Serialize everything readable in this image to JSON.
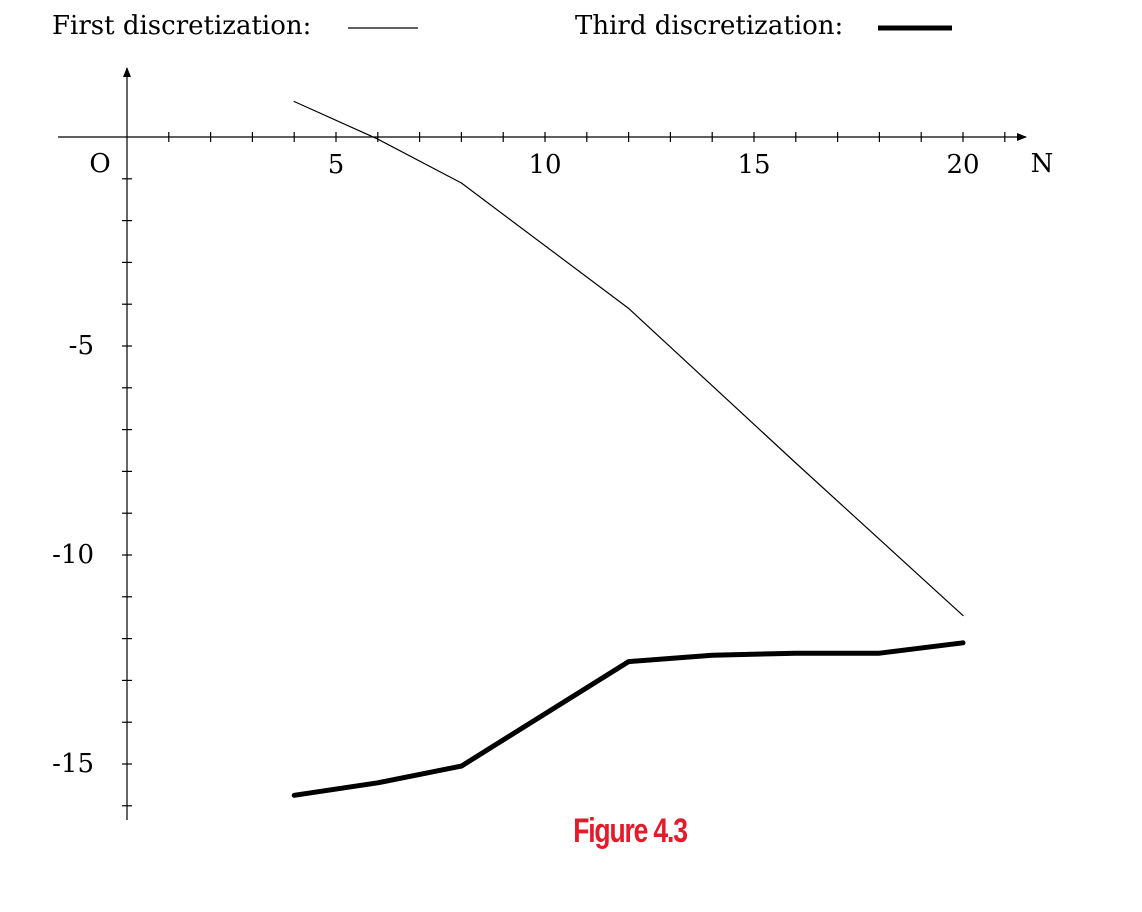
{
  "caption": "Figure 4.3",
  "colors": {
    "caption": "#e31b2b",
    "axes": "#000000",
    "background": "#ffffff"
  },
  "chart_data": {
    "type": "line",
    "title": "",
    "xlabel": "N",
    "ylabel": "",
    "origin_label": "O",
    "xlim": [
      0,
      21.5
    ],
    "ylim": [
      -16.3,
      1.5
    ],
    "x_minor_ticks": [
      1,
      2,
      3,
      4,
      5,
      6,
      7,
      8,
      9,
      10,
      11,
      12,
      13,
      14,
      15,
      16,
      17,
      18,
      19,
      20,
      21
    ],
    "x_tick_labels": [
      {
        "value": 5,
        "label": "5"
      },
      {
        "value": 10,
        "label": "10"
      },
      {
        "value": 15,
        "label": "15"
      },
      {
        "value": 20,
        "label": "20"
      }
    ],
    "y_minor_ticks": [
      -1,
      -2,
      -3,
      -4,
      -5,
      -6,
      -7,
      -8,
      -9,
      -10,
      -11,
      -12,
      -13,
      -14,
      -15,
      -16
    ],
    "y_tick_labels": [
      {
        "value": -5,
        "label": "-5"
      },
      {
        "value": -10,
        "label": "-10"
      },
      {
        "value": -15,
        "label": "-15"
      }
    ],
    "grid": false,
    "legend_position": "top",
    "series": [
      {
        "name": "First discretization:",
        "style": "thin",
        "x": [
          4,
          6,
          8,
          12,
          16,
          20
        ],
        "y": [
          0.85,
          -0.05,
          -1.1,
          -4.1,
          -7.8,
          -11.45
        ]
      },
      {
        "name": "Third discretization:",
        "style": "thick",
        "x": [
          4,
          6,
          8,
          12,
          14,
          16,
          18,
          20
        ],
        "y": [
          -15.75,
          -15.45,
          -15.05,
          -12.55,
          -12.4,
          -12.35,
          -12.35,
          -12.1
        ]
      }
    ]
  }
}
